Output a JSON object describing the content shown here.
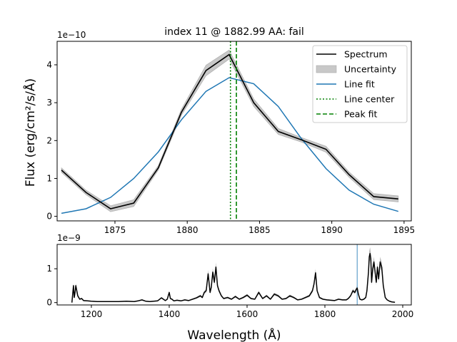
{
  "chart_data": [
    {
      "type": "line",
      "title": "index 11 @ 1882.99 AA: fail",
      "xlabel": "",
      "ylabel": "Flux (erg/cm²/s/Å)",
      "y_scale_label": "1e−10",
      "xlim": [
        1871,
        1895.5
      ],
      "ylim": [
        -0.12,
        4.62
      ],
      "xticks": [
        1875,
        1880,
        1885,
        1890,
        1895
      ],
      "yticks": [
        0,
        1,
        2,
        3,
        4
      ],
      "legend": {
        "placement": "top-right",
        "entries": [
          {
            "label": "Spectrum",
            "color": "#000000",
            "style": "solid"
          },
          {
            "label": "Uncertainty",
            "color": "#c8c8c8",
            "style": "band"
          },
          {
            "label": "Line fit",
            "color": "#1f77b4",
            "style": "solid"
          },
          {
            "label": "Line center",
            "color": "#008000",
            "style": "dotted"
          },
          {
            "label": "Peak fit",
            "color": "#008000",
            "style": "dashed"
          }
        ]
      },
      "series": [
        {
          "name": "Spectrum",
          "color": "#000000",
          "x": [
            1871.3,
            1873.0,
            1874.7,
            1876.3,
            1878.0,
            1879.6,
            1881.3,
            1882.9,
            1884.6,
            1886.3,
            1887.9,
            1889.6,
            1891.2,
            1892.9,
            1894.6
          ],
          "y": [
            1.22,
            0.63,
            0.2,
            0.35,
            1.28,
            2.75,
            3.85,
            4.27,
            3.0,
            2.24,
            2.02,
            1.77,
            1.1,
            0.52,
            0.46
          ],
          "err": [
            0.06,
            0.06,
            0.08,
            0.09,
            0.06,
            0.08,
            0.14,
            0.12,
            0.1,
            0.08,
            0.06,
            0.08,
            0.07,
            0.08,
            0.08
          ]
        },
        {
          "name": "Line fit",
          "color": "#1f77b4",
          "x": [
            1871.3,
            1873.0,
            1874.7,
            1876.3,
            1878.0,
            1879.6,
            1881.3,
            1882.9,
            1884.6,
            1886.3,
            1887.9,
            1889.6,
            1891.2,
            1892.9,
            1894.6
          ],
          "y": [
            0.08,
            0.2,
            0.5,
            1.0,
            1.7,
            2.55,
            3.3,
            3.66,
            3.5,
            2.9,
            2.05,
            1.26,
            0.69,
            0.32,
            0.13
          ]
        }
      ],
      "vlines": [
        {
          "name": "Line center",
          "x": 1882.99,
          "color": "#008000",
          "style": "dotted"
        },
        {
          "name": "Peak fit",
          "x": 1883.4,
          "color": "#008000",
          "style": "dashed"
        }
      ]
    },
    {
      "type": "line",
      "xlabel": "Wavelength (Å)",
      "ylabel": "",
      "y_scale_label": "1e−9",
      "xlim": [
        1112,
        2022
      ],
      "ylim": [
        -0.07,
        1.72
      ],
      "xticks": [
        1200,
        1400,
        1600,
        1800,
        2000
      ],
      "yticks": [
        0,
        1
      ],
      "marker_line": {
        "x": 1882.99,
        "color": "#1f77b4"
      },
      "series": [
        {
          "name": "Spectrum",
          "color": "#000000",
          "x": [
            1150,
            1152,
            1154,
            1156,
            1158,
            1160,
            1165,
            1170,
            1175,
            1180,
            1190,
            1200,
            1215,
            1230,
            1250,
            1270,
            1290,
            1310,
            1320,
            1330,
            1340,
            1350,
            1360,
            1370,
            1380,
            1390,
            1395,
            1400,
            1403,
            1407,
            1412,
            1420,
            1430,
            1440,
            1450,
            1460,
            1470,
            1480,
            1485,
            1490,
            1495,
            1500,
            1505,
            1508,
            1512,
            1516,
            1520,
            1524,
            1528,
            1534,
            1540,
            1550,
            1560,
            1570,
            1580,
            1590,
            1600,
            1610,
            1620,
            1630,
            1640,
            1650,
            1660,
            1670,
            1680,
            1690,
            1700,
            1710,
            1720,
            1730,
            1740,
            1750,
            1760,
            1768,
            1772,
            1776,
            1780,
            1786,
            1795,
            1805,
            1815,
            1825,
            1835,
            1845,
            1855,
            1860,
            1866,
            1872,
            1877,
            1880,
            1883,
            1886,
            1890,
            1895,
            1900,
            1905,
            1908,
            1912,
            1914,
            1916,
            1918,
            1920,
            1923,
            1926,
            1929,
            1932,
            1935,
            1938,
            1942,
            1946,
            1950,
            1955,
            1960,
            1966,
            1972,
            1980
          ],
          "y": [
            0.0,
            0.25,
            0.5,
            0.15,
            0.3,
            0.5,
            0.2,
            0.1,
            0.12,
            0.06,
            0.05,
            0.04,
            0.03,
            0.03,
            0.03,
            0.03,
            0.04,
            0.03,
            0.05,
            0.08,
            0.04,
            0.03,
            0.04,
            0.05,
            0.14,
            0.06,
            0.1,
            0.3,
            0.12,
            0.1,
            0.05,
            0.07,
            0.05,
            0.08,
            0.06,
            0.1,
            0.14,
            0.2,
            0.15,
            0.3,
            0.35,
            0.85,
            0.3,
            0.45,
            0.9,
            0.6,
            1.05,
            0.5,
            0.35,
            0.2,
            0.12,
            0.15,
            0.1,
            0.18,
            0.1,
            0.15,
            0.22,
            0.12,
            0.1,
            0.3,
            0.12,
            0.2,
            0.1,
            0.25,
            0.2,
            0.1,
            0.12,
            0.2,
            0.15,
            0.08,
            0.1,
            0.15,
            0.2,
            0.35,
            0.55,
            0.88,
            0.35,
            0.15,
            0.1,
            0.08,
            0.07,
            0.06,
            0.1,
            0.08,
            0.08,
            0.12,
            0.2,
            0.35,
            0.3,
            0.38,
            0.43,
            0.25,
            0.1,
            0.08,
            0.1,
            0.15,
            0.35,
            0.9,
            1.35,
            1.45,
            1.3,
            0.6,
            1.0,
            1.2,
            0.9,
            0.6,
            1.05,
            0.7,
            1.2,
            1.05,
            0.5,
            0.15,
            0.08,
            0.04,
            0.02,
            0.01
          ],
          "err_scale": 0.12
        }
      ]
    }
  ]
}
